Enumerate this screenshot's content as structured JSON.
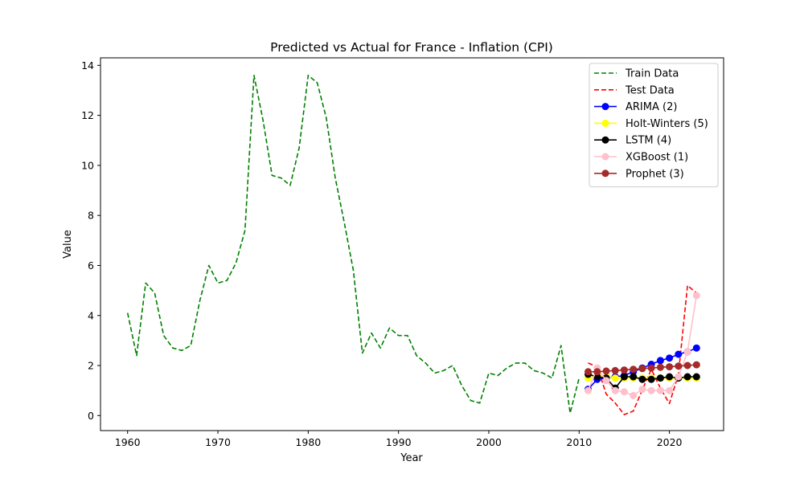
{
  "chart_data": {
    "type": "line",
    "title": "Predicted vs Actual for France - Inflation (CPI)",
    "xlabel": "Year",
    "ylabel": "Value",
    "xlim": [
      1957,
      2026
    ],
    "ylim": [
      -0.6,
      14.3
    ],
    "xticks": [
      1960,
      1970,
      1980,
      1990,
      2000,
      2010,
      2020
    ],
    "yticks": [
      0,
      2,
      4,
      6,
      8,
      10,
      12,
      14
    ],
    "grid": false,
    "legend_position": "top-right",
    "series": [
      {
        "name": "Train Data",
        "color": "#008000",
        "style": "dashed",
        "marker": false,
        "x": [
          1960,
          1961,
          1962,
          1963,
          1964,
          1965,
          1966,
          1967,
          1968,
          1969,
          1970,
          1971,
          1972,
          1973,
          1974,
          1975,
          1976,
          1977,
          1978,
          1979,
          1980,
          1981,
          1982,
          1983,
          1984,
          1985,
          1986,
          1987,
          1988,
          1989,
          1990,
          1991,
          1992,
          1993,
          1994,
          1995,
          1996,
          1997,
          1998,
          1999,
          2000,
          2001,
          2002,
          2003,
          2004,
          2005,
          2006,
          2007,
          2008,
          2009,
          2010
        ],
        "values": [
          4.1,
          2.4,
          5.3,
          4.9,
          3.2,
          2.7,
          2.6,
          2.8,
          4.6,
          6.0,
          5.3,
          5.4,
          6.1,
          7.4,
          13.6,
          11.8,
          9.6,
          9.5,
          9.2,
          10.7,
          13.6,
          13.3,
          11.9,
          9.5,
          7.7,
          5.8,
          2.5,
          3.3,
          2.7,
          3.5,
          3.2,
          3.2,
          2.4,
          2.1,
          1.7,
          1.8,
          2.0,
          1.2,
          0.6,
          0.5,
          1.7,
          1.6,
          1.9,
          2.1,
          2.1,
          1.8,
          1.7,
          1.5,
          2.8,
          0.1,
          1.5
        ]
      },
      {
        "name": "Test Data",
        "color": "#ff0000",
        "style": "dashed",
        "marker": false,
        "x": [
          2011,
          2012,
          2013,
          2014,
          2015,
          2016,
          2017,
          2018,
          2019,
          2020,
          2021,
          2022,
          2023
        ],
        "values": [
          2.1,
          1.95,
          0.86,
          0.5,
          0.04,
          0.18,
          1.03,
          1.85,
          1.1,
          0.48,
          1.64,
          5.2,
          4.9
        ]
      },
      {
        "name": "ARIMA (2)",
        "color": "#0000ff",
        "style": "solid",
        "marker": true,
        "x": [
          2011,
          2012,
          2013,
          2014,
          2015,
          2016,
          2017,
          2018,
          2019,
          2020,
          2021,
          2022,
          2023
        ],
        "values": [
          1.05,
          1.45,
          1.5,
          1.55,
          1.6,
          1.75,
          1.9,
          2.05,
          2.2,
          2.3,
          2.45,
          2.55,
          2.7
        ]
      },
      {
        "name": "Holt-Winters (5)",
        "color": "#ffff00",
        "style": "solid",
        "marker": true,
        "x": [
          2011,
          2012,
          2013,
          2014,
          2015,
          2016,
          2017,
          2018,
          2019,
          2020,
          2021,
          2022,
          2023
        ],
        "values": [
          1.5,
          1.6,
          1.55,
          1.5,
          1.5,
          1.5,
          1.5,
          1.5,
          1.5,
          1.5,
          1.5,
          1.5,
          1.5
        ]
      },
      {
        "name": "LSTM (4)",
        "color": "#000000",
        "style": "solid",
        "marker": true,
        "x": [
          2011,
          2012,
          2013,
          2014,
          2015,
          2016,
          2017,
          2018,
          2019,
          2020,
          2021,
          2022,
          2023
        ],
        "values": [
          1.65,
          1.55,
          1.5,
          1.1,
          1.55,
          1.55,
          1.45,
          1.45,
          1.5,
          1.55,
          1.5,
          1.55,
          1.55
        ]
      },
      {
        "name": "XGBoost (1)",
        "color": "#ffc0cb",
        "style": "solid",
        "marker": true,
        "x": [
          2011,
          2012,
          2013,
          2014,
          2015,
          2016,
          2017,
          2018,
          2019,
          2020,
          2021,
          2022,
          2023
        ],
        "values": [
          1.0,
          1.9,
          1.4,
          1.0,
          0.95,
          0.8,
          1.05,
          1.0,
          1.0,
          1.0,
          1.55,
          2.55,
          4.8
        ]
      },
      {
        "name": "Prophet (3)",
        "color": "#a52a2a",
        "style": "solid",
        "marker": true,
        "x": [
          2011,
          2012,
          2013,
          2014,
          2015,
          2016,
          2017,
          2018,
          2019,
          2020,
          2021,
          2022,
          2023
        ],
        "values": [
          1.75,
          1.75,
          1.78,
          1.8,
          1.82,
          1.85,
          1.88,
          1.9,
          1.93,
          1.95,
          1.98,
          2.0,
          2.03
        ]
      }
    ]
  }
}
